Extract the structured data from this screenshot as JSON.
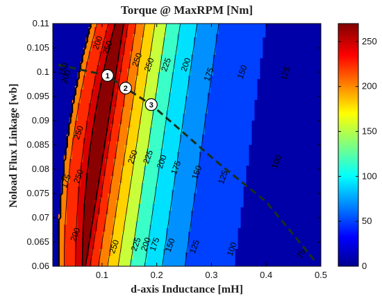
{
  "chart_data": {
    "type": "heatmap",
    "title": "Torque @ MaxRPM [Nm]",
    "xlabel": "d-axis Inductance [mH]",
    "ylabel": "Noload Flux Linkage [wb]",
    "xlim": [
      0.01,
      0.5
    ],
    "ylim": [
      0.06,
      0.11
    ],
    "x_ticks": [
      "0.1",
      "0.2",
      "0.3",
      "0.4",
      "0.5"
    ],
    "y_ticks": [
      "0.06",
      "0.065",
      "0.07",
      "0.075",
      "0.08",
      "0.085",
      "0.09",
      "0.095",
      "0.1",
      "0.105",
      "0.11"
    ],
    "colorbar": {
      "range": [
        0,
        270
      ],
      "ticks": [
        "0",
        "50",
        "100",
        "150",
        "200",
        "250"
      ]
    },
    "contour_levels": [
      75,
      100,
      125,
      150,
      175,
      200,
      225,
      250
    ],
    "contour_labels": [
      {
        "text": "75",
        "x": 0.465,
        "y": 0.0625,
        "rot": -70
      },
      {
        "text": "100",
        "x": 0.42,
        "y": 0.0815,
        "rot": -70
      },
      {
        "text": "100",
        "x": 0.338,
        "y": 0.0635,
        "rot": -70
      },
      {
        "text": "125",
        "x": 0.436,
        "y": 0.0997,
        "rot": -70
      },
      {
        "text": "125",
        "x": 0.322,
        "y": 0.0783,
        "rot": -70
      },
      {
        "text": "125",
        "x": 0.27,
        "y": 0.064,
        "rot": -70
      },
      {
        "text": "150",
        "x": 0.357,
        "y": 0.1,
        "rot": -70
      },
      {
        "text": "150",
        "x": 0.274,
        "y": 0.0793,
        "rot": -70
      },
      {
        "text": "150",
        "x": 0.225,
        "y": 0.0643,
        "rot": -70
      },
      {
        "text": "175",
        "x": 0.296,
        "y": 0.0995,
        "rot": -70
      },
      {
        "text": "175",
        "x": 0.236,
        "y": 0.0803,
        "rot": -70
      },
      {
        "text": "175",
        "x": 0.197,
        "y": 0.0645,
        "rot": -70
      },
      {
        "text": "200",
        "x": 0.254,
        "y": 0.1015,
        "rot": -70
      },
      {
        "text": "200",
        "x": 0.21,
        "y": 0.0815,
        "rot": -70
      },
      {
        "text": "200",
        "x": 0.181,
        "y": 0.0645,
        "rot": -70
      },
      {
        "text": "225",
        "x": 0.218,
        "y": 0.1015,
        "rot": -70
      },
      {
        "text": "225",
        "x": 0.185,
        "y": 0.0825,
        "rot": -70
      },
      {
        "text": "225",
        "x": 0.163,
        "y": 0.0645,
        "rot": -70
      },
      {
        "text": "250",
        "x": 0.187,
        "y": 0.1015,
        "rot": -70
      },
      {
        "text": "250",
        "x": 0.157,
        "y": 0.0825,
        "rot": -70
      },
      {
        "text": "250",
        "x": 0.123,
        "y": 0.064,
        "rot": -70
      },
      {
        "text": "250",
        "x": 0.165,
        "y": 0.1025,
        "rot": -70
      },
      {
        "text": "200",
        "x": 0.093,
        "y": 0.106,
        "rot": -70
      },
      {
        "text": "250",
        "x": 0.111,
        "y": 0.105,
        "rot": -70
      },
      {
        "text": "200",
        "x": 0.035,
        "y": 0.099,
        "rot": -70
      },
      {
        "text": "175",
        "x": 0.035,
        "y": 0.0775,
        "rot": -70
      },
      {
        "text": "250",
        "x": 0.058,
        "y": 0.0875,
        "rot": -70
      },
      {
        "text": "250",
        "x": 0.058,
        "y": 0.0785,
        "rot": -70
      },
      {
        "text": "150",
        "x": 0.03,
        "y": 0.1005,
        "rot": -70
      },
      {
        "text": "200",
        "x": 0.052,
        "y": 0.0665,
        "rot": -70
      }
    ],
    "markers": [
      {
        "label": "1",
        "x": 0.11,
        "y": 0.0993
      },
      {
        "label": "2",
        "x": 0.143,
        "y": 0.0967
      },
      {
        "label": "3",
        "x": 0.19,
        "y": 0.0933
      }
    ],
    "dashed_line": [
      [
        0.02,
        0.1015
      ],
      [
        0.11,
        0.0993
      ],
      [
        0.143,
        0.0967
      ],
      [
        0.19,
        0.0933
      ],
      [
        0.31,
        0.0815
      ],
      [
        0.4,
        0.0733
      ],
      [
        0.49,
        0.061
      ]
    ]
  }
}
